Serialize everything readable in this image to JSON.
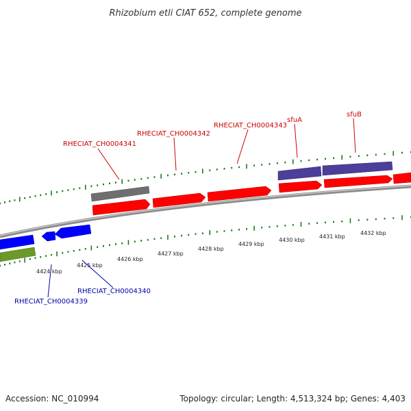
{
  "title": "Rhizobium etli CIAT 652, complete genome",
  "footer": {
    "accession": "Accession: NC_010994",
    "summary": "Topology: circular; Length: 4,513,324 bp; Genes: 4,403"
  },
  "colors": {
    "backbone": "#8c8c8c",
    "tick": "#1a7a1a",
    "forward_gene": "#ff0000",
    "reverse_gene": "#0000ff",
    "purple_gene": "#4b3f99",
    "gray_gene": "#6f6f6f",
    "olive_gene": "#6b9a2a",
    "label_forward": "#cc0000",
    "label_reverse": "#0000aa"
  },
  "scale_ticks": [
    "4424 kbp",
    "4425 kbp",
    "4426 kbp",
    "4427 kbp",
    "4428 kbp",
    "4429 kbp",
    "4430 kbp",
    "4431 kbp",
    "4432 kbp"
  ],
  "gene_labels": {
    "forward": [
      "RHECIAT_CH0004341",
      "RHECIAT_CH0004342",
      "RHECIAT_CH0004343",
      "sfuA",
      "sfuB"
    ],
    "reverse": [
      "RHECIAT_CH0004339",
      "RHECIAT_CH0004340"
    ]
  }
}
